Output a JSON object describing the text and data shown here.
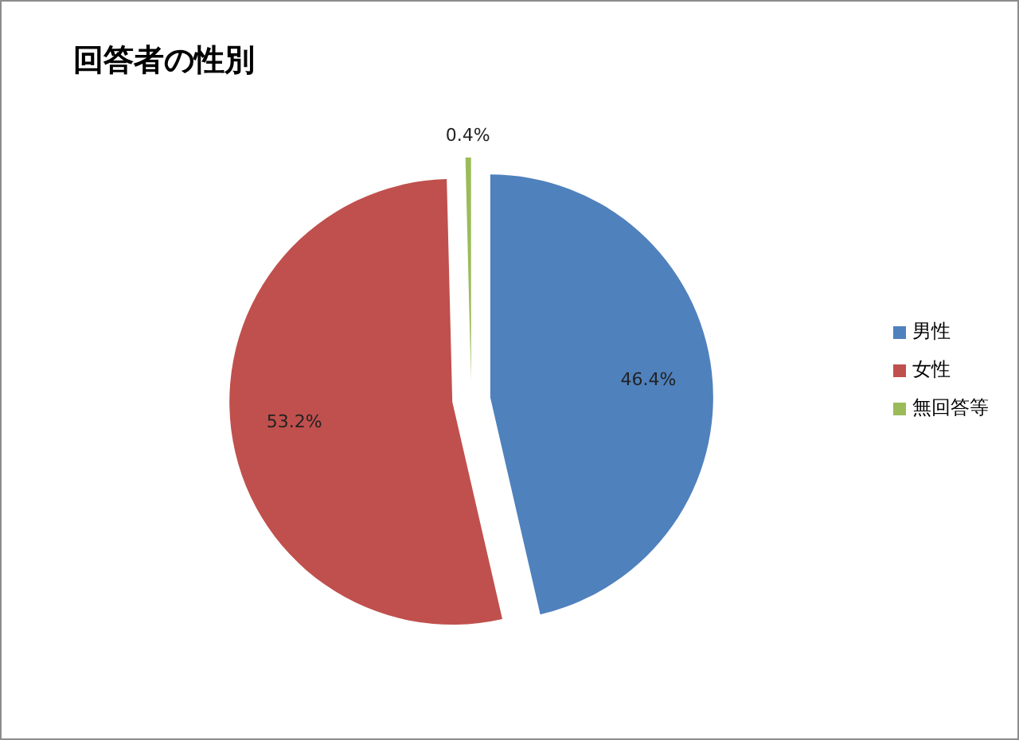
{
  "chart_data": {
    "type": "pie",
    "title": "回答者の性別",
    "categories": [
      "男性",
      "女性",
      "無回答等"
    ],
    "values": [
      46.4,
      53.2,
      0.4
    ],
    "colors": [
      "#4f81bd",
      "#c0504d",
      "#9bbb59"
    ],
    "value_labels": [
      "46.4%",
      "53.2%",
      "0.4%"
    ],
    "legend": "right"
  }
}
